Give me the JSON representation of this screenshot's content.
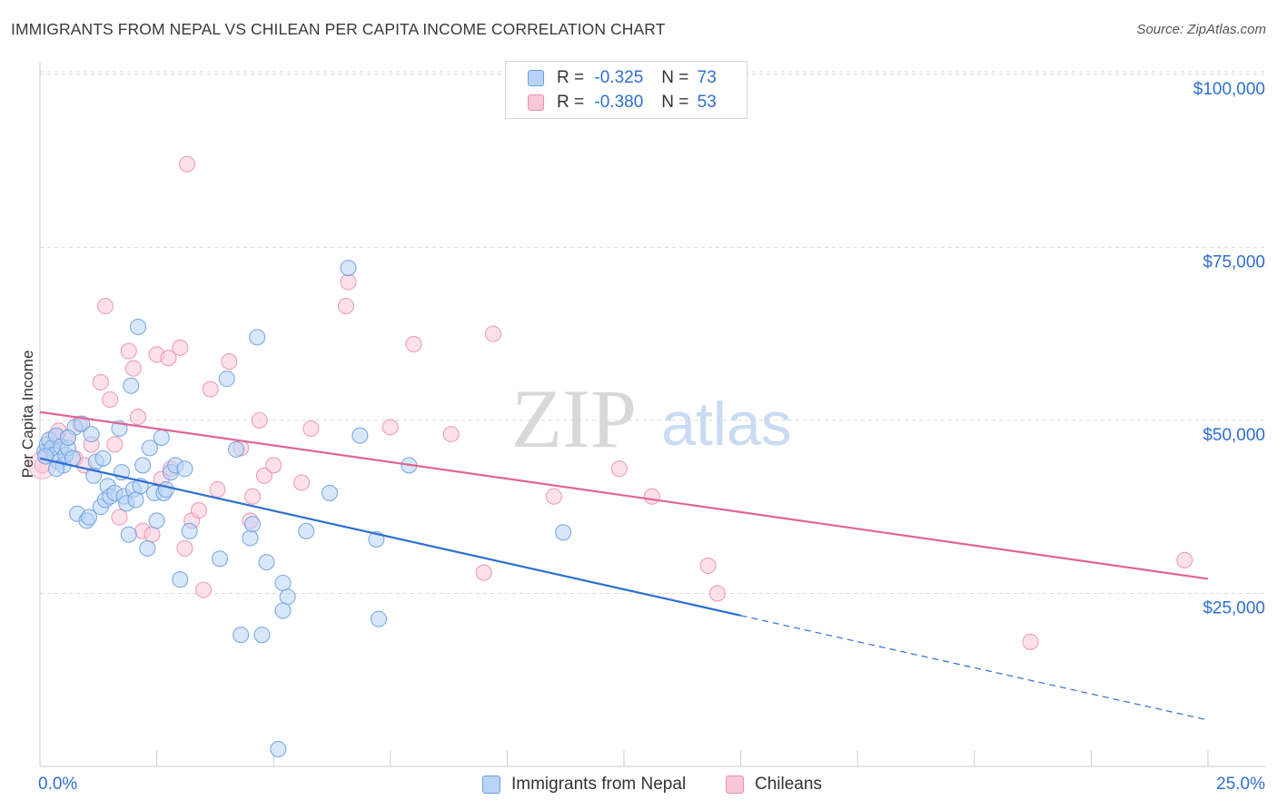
{
  "title": "IMMIGRANTS FROM NEPAL VS CHILEAN PER CAPITA INCOME CORRELATION CHART",
  "source": "Source: ZipAtlas.com",
  "watermark": {
    "zip": "ZIP",
    "atlas": "atlas"
  },
  "legend": {
    "series1": {
      "r_label": "R =",
      "r_value": "-0.325",
      "n_label": "N =",
      "n_value": "73"
    },
    "series2": {
      "r_label": "R =",
      "r_value": "-0.380",
      "n_label": "N =",
      "n_value": "53"
    }
  },
  "bottom_legend": {
    "series1": "Immigrants from Nepal",
    "series2": "Chileans"
  },
  "colors": {
    "blue": "#2e6fd1",
    "blue_fill": "#b8d3f5",
    "pink": "#e06596",
    "pink_fill": "#f9c8d8",
    "grid": "#d9d9d9",
    "tick_text": "#2e6fd1"
  },
  "chart_data": {
    "type": "scatter",
    "title": "IMMIGRANTS FROM NEPAL VS CHILEAN PER CAPITA INCOME CORRELATION CHART",
    "xlabel": "",
    "ylabel": "Per Capita Income",
    "xlim": [
      0,
      25
    ],
    "ylim": [
      0,
      105000
    ],
    "x_tick_labels": [
      "0.0%",
      "25.0%"
    ],
    "y_ticks": [
      25000,
      50000,
      75000,
      100000
    ],
    "y_tick_labels": [
      "$25,000",
      "$50,000",
      "$75,000",
      "$100,000"
    ],
    "series": [
      {
        "name": "Immigrants from Nepal",
        "color": "#2e6fd1",
        "r": -0.325,
        "n": 73,
        "trend": {
          "x0": 0,
          "y0": 44500,
          "x1": 15,
          "y1": 21800,
          "dash_to_x": 25,
          "dash_to_y": 6700
        },
        "points": [
          [
            0.1,
            45500
          ],
          [
            0.15,
            46500
          ],
          [
            0.2,
            47200
          ],
          [
            0.25,
            46000
          ],
          [
            0.3,
            45000
          ],
          [
            0.35,
            47800
          ],
          [
            0.4,
            44000
          ],
          [
            0.45,
            46200
          ],
          [
            0.5,
            43500
          ],
          [
            0.55,
            45000
          ],
          [
            0.6,
            46000
          ],
          [
            0.7,
            44500
          ],
          [
            0.75,
            49000
          ],
          [
            0.8,
            36500
          ],
          [
            0.9,
            49500
          ],
          [
            1.0,
            35500
          ],
          [
            1.05,
            36000
          ],
          [
            1.1,
            48000
          ],
          [
            1.2,
            44000
          ],
          [
            1.3,
            37500
          ],
          [
            1.35,
            44500
          ],
          [
            1.4,
            38500
          ],
          [
            1.45,
            40500
          ],
          [
            1.5,
            39000
          ],
          [
            1.6,
            39500
          ],
          [
            1.7,
            48800
          ],
          [
            1.75,
            42500
          ],
          [
            1.8,
            39000
          ],
          [
            1.85,
            38000
          ],
          [
            1.9,
            33500
          ],
          [
            1.95,
            55000
          ],
          [
            2.0,
            40000
          ],
          [
            2.1,
            63500
          ],
          [
            2.15,
            40500
          ],
          [
            2.2,
            43500
          ],
          [
            2.3,
            31500
          ],
          [
            2.35,
            46000
          ],
          [
            2.45,
            39500
          ],
          [
            2.5,
            35500
          ],
          [
            2.6,
            47500
          ],
          [
            2.65,
            39500
          ],
          [
            2.7,
            40000
          ],
          [
            2.8,
            42500
          ],
          [
            2.9,
            43500
          ],
          [
            3.0,
            27000
          ],
          [
            3.1,
            43000
          ],
          [
            3.2,
            34000
          ],
          [
            3.85,
            30000
          ],
          [
            4.0,
            56000
          ],
          [
            4.2,
            45800
          ],
          [
            4.3,
            19000
          ],
          [
            4.5,
            33000
          ],
          [
            4.55,
            35000
          ],
          [
            4.65,
            62000
          ],
          [
            4.75,
            19000
          ],
          [
            4.85,
            29500
          ],
          [
            5.2,
            26500
          ],
          [
            5.3,
            24500
          ],
          [
            5.2,
            22500
          ],
          [
            5.1,
            2500
          ],
          [
            5.7,
            34000
          ],
          [
            6.2,
            39500
          ],
          [
            6.6,
            72000
          ],
          [
            6.85,
            47800
          ],
          [
            7.2,
            32800
          ],
          [
            7.25,
            21300
          ],
          [
            7.9,
            43500
          ],
          [
            11.2,
            33800
          ],
          [
            0.12,
            44800
          ],
          [
            0.35,
            43000
          ],
          [
            0.6,
            47500
          ],
          [
            1.15,
            42000
          ],
          [
            2.05,
            38500
          ]
        ]
      },
      {
        "name": "Chileans",
        "color": "#e06596",
        "r": -0.38,
        "n": 53,
        "trend": {
          "x0": 0,
          "y0": 51200,
          "x1": 25,
          "y1": 27100
        },
        "points": [
          [
            0.05,
            43500
          ],
          [
            0.15,
            45500
          ],
          [
            0.3,
            47500
          ],
          [
            0.4,
            48500
          ],
          [
            0.6,
            47500
          ],
          [
            0.75,
            44500
          ],
          [
            0.85,
            49500
          ],
          [
            0.95,
            43500
          ],
          [
            1.1,
            46500
          ],
          [
            1.3,
            55500
          ],
          [
            1.4,
            66500
          ],
          [
            1.5,
            53000
          ],
          [
            1.6,
            46500
          ],
          [
            1.7,
            36000
          ],
          [
            1.9,
            60000
          ],
          [
            2.0,
            57500
          ],
          [
            2.1,
            50500
          ],
          [
            2.2,
            34000
          ],
          [
            2.4,
            33500
          ],
          [
            2.5,
            59500
          ],
          [
            2.6,
            41500
          ],
          [
            2.75,
            59000
          ],
          [
            2.8,
            43000
          ],
          [
            3.0,
            60500
          ],
          [
            3.1,
            31500
          ],
          [
            3.15,
            87000
          ],
          [
            3.25,
            35500
          ],
          [
            3.4,
            37000
          ],
          [
            3.5,
            25500
          ],
          [
            3.65,
            54500
          ],
          [
            3.8,
            40000
          ],
          [
            4.05,
            58500
          ],
          [
            4.3,
            46000
          ],
          [
            4.5,
            35500
          ],
          [
            4.55,
            39000
          ],
          [
            4.7,
            50000
          ],
          [
            4.8,
            42000
          ],
          [
            5.0,
            43500
          ],
          [
            5.6,
            41000
          ],
          [
            5.8,
            48800
          ],
          [
            6.6,
            70000
          ],
          [
            6.55,
            66500
          ],
          [
            7.5,
            49000
          ],
          [
            8.0,
            61000
          ],
          [
            8.8,
            48000
          ],
          [
            9.5,
            28000
          ],
          [
            9.7,
            62500
          ],
          [
            11.0,
            39000
          ],
          [
            12.4,
            43000
          ],
          [
            13.1,
            39000
          ],
          [
            14.3,
            29000
          ],
          [
            14.5,
            25000
          ],
          [
            21.2,
            18000
          ]
        ],
        "extra_points": [
          [
            24.5,
            29800
          ]
        ]
      }
    ]
  }
}
